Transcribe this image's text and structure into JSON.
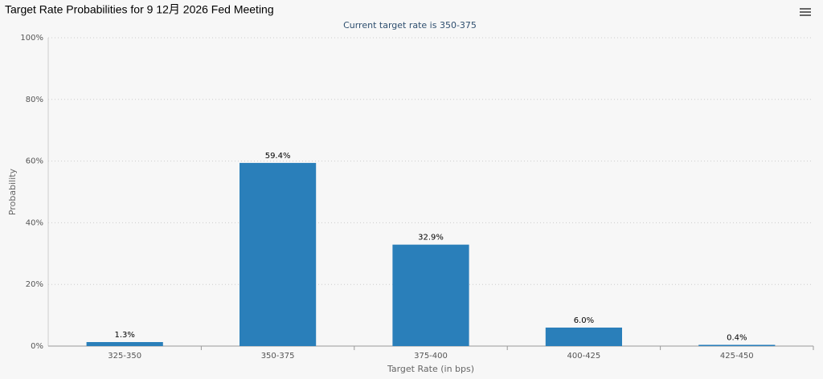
{
  "chart_data": {
    "type": "bar",
    "title": "Target Rate Probabilities for 9 12月 2026 Fed Meeting",
    "subtitle": "Current target rate is 350-375",
    "x_axis_title": "Target Rate (in bps)",
    "y_axis_title": "Probability",
    "categories": [
      "325-350",
      "350-375",
      "375-400",
      "400-425",
      "425-450"
    ],
    "values": [
      1.3,
      59.4,
      32.9,
      6.0,
      0.4
    ],
    "value_labels": [
      "1.3%",
      "59.4%",
      "32.9%",
      "6.0%",
      "0.4%"
    ],
    "color": "#2a7fba",
    "ylim": [
      0,
      100
    ],
    "yticks": [
      {
        "value": 0,
        "label": "0%"
      },
      {
        "value": 20,
        "label": "20%"
      },
      {
        "value": 40,
        "label": "40%"
      },
      {
        "value": 60,
        "label": "60%"
      },
      {
        "value": 80,
        "label": "80%"
      },
      {
        "value": 100,
        "label": "100%"
      }
    ],
    "grid": true
  }
}
